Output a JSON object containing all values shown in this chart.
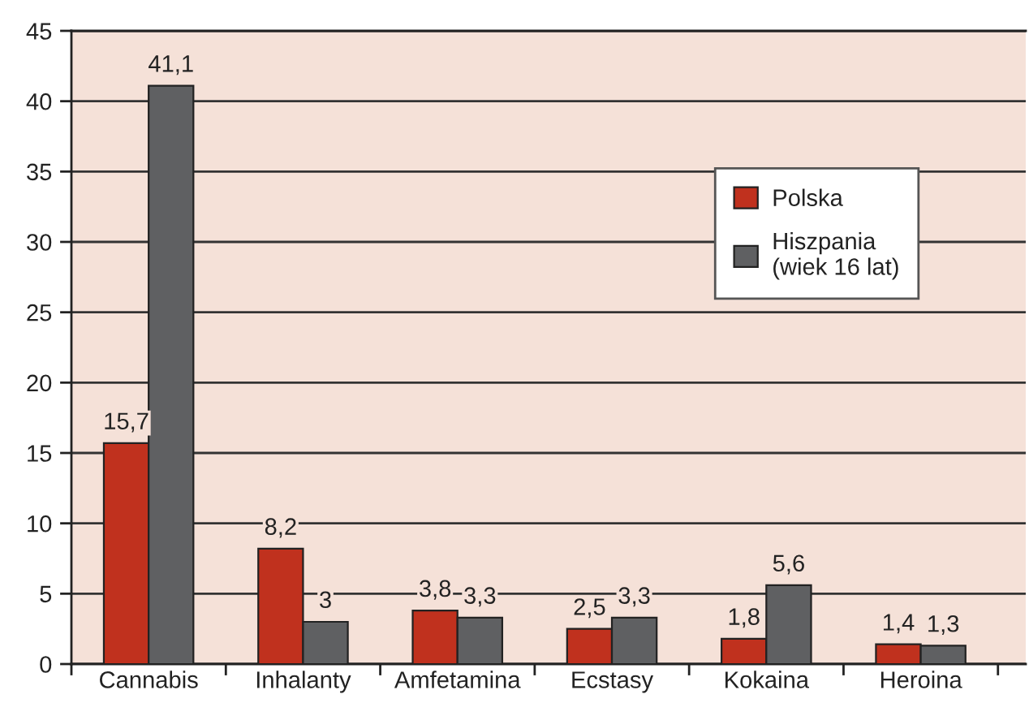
{
  "chart_data": {
    "type": "bar",
    "categories": [
      "Cannabis",
      "Inhalanty",
      "Amfetamina",
      "Ecstasy",
      "Kokaina",
      "Heroina"
    ],
    "series": [
      {
        "name": "Polska",
        "color": "#c0311e",
        "values": [
          15.7,
          8.2,
          3.8,
          2.5,
          1.8,
          1.4
        ],
        "value_labels": [
          "15,7",
          "8,2",
          "3,8",
          "2,5",
          "1,8",
          "1,4"
        ]
      },
      {
        "name": "Hiszpania\n(wiek 16 lat)",
        "color": "#5f6062",
        "values": [
          41.1,
          3,
          3.3,
          3.3,
          5.6,
          1.3
        ],
        "value_labels": [
          "41,1",
          "3",
          "3,3",
          "3,3",
          "5,6",
          "1,3"
        ]
      }
    ],
    "ylim": [
      0,
      45
    ],
    "yticks": [
      0,
      5,
      10,
      15,
      20,
      25,
      30,
      35,
      40,
      45
    ],
    "grid": "y",
    "legend": "right"
  }
}
